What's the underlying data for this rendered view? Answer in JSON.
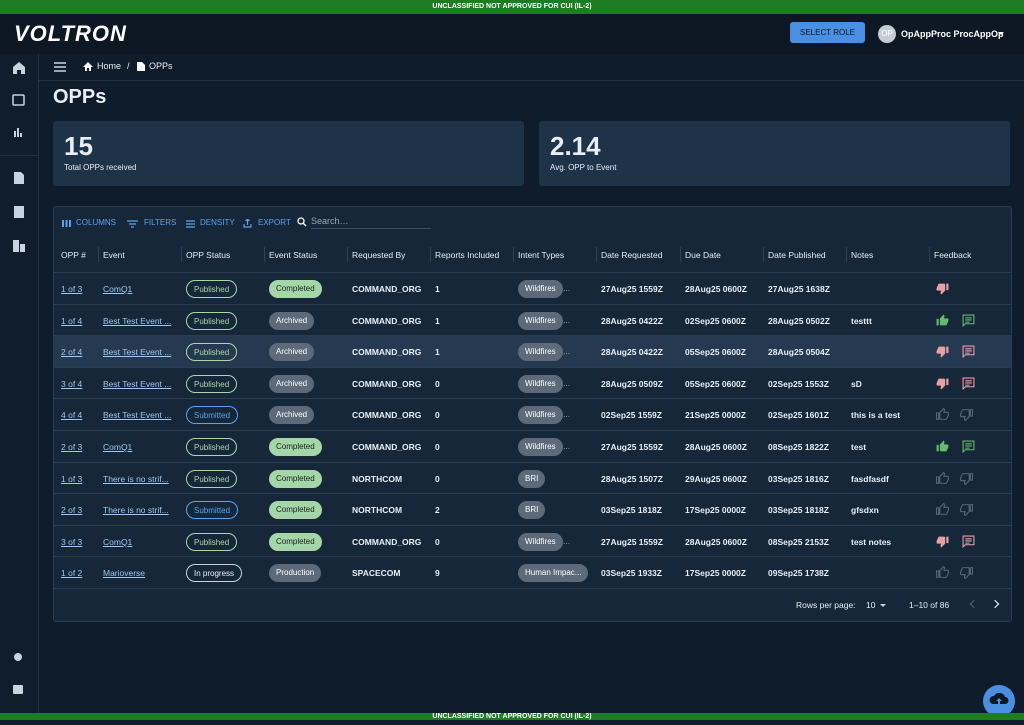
{
  "banner": {
    "top": "UNCLASSIFIED NOT APPROVED FOR CUI (IL-2)",
    "bottom": "UNCLASSIFIED NOT APPROVED FOR CUI (IL-2)"
  },
  "header": {
    "logo": "VOLTRON",
    "select_role": "SELECT ROLE",
    "avatar": "OP",
    "user": "OpAppProc ProcAppOp"
  },
  "breadcrumb": {
    "home": "Home",
    "separator": "/",
    "current": "OPPs"
  },
  "page_title": "OPPs",
  "stats": [
    {
      "value": "15",
      "label": "Total OPPs received"
    },
    {
      "value": "2.14",
      "label": "Avg. OPP to Event"
    }
  ],
  "toolbar": {
    "columns": "COLUMNS",
    "filters": "FILTERS",
    "density": "DENSITY",
    "export": "EXPORT",
    "search": "Search…"
  },
  "table": {
    "columns": [
      "OPP #",
      "Event",
      "OPP Status",
      "Event Status",
      "Requested By",
      "Reports Included",
      "Intent Types",
      "Date Requested",
      "Due Date",
      "Date Published",
      "Notes",
      "Feedback"
    ],
    "rows": [
      {
        "opp": "1 of 3",
        "event": "ComQ1",
        "opp_status": "Published",
        "event_status": "Completed",
        "requested_by": "COMMAND_ORG",
        "reports": 1,
        "intent": "Wildfires",
        "intent_more": "...",
        "date_requested": "27Aug25 1559Z",
        "due_date": "28Aug25 0600Z",
        "date_published": "27Aug25 1638Z",
        "notes": null,
        "feedback": {
          "rating": "down",
          "comment": false
        }
      },
      {
        "opp": "1 of 4",
        "event": "Best Test Event ...",
        "opp_status": "Published",
        "event_status": "Archived",
        "requested_by": "COMMAND_ORG",
        "reports": 1,
        "intent": "Wildfires",
        "intent_more": "...",
        "date_requested": "28Aug25 0422Z",
        "due_date": "02Sep25 0600Z",
        "date_published": "28Aug25 0502Z",
        "notes": "testtt",
        "feedback": {
          "rating": "up",
          "comment": true
        }
      },
      {
        "opp": "2 of 4",
        "event": "Best Test Event ...",
        "opp_status": "Published",
        "event_status": "Archived",
        "requested_by": "COMMAND_ORG",
        "reports": 1,
        "intent": "Wildfires",
        "intent_more": "...",
        "date_requested": "28Aug25 0422Z",
        "due_date": "05Sep25 0600Z",
        "date_published": "28Aug25 0504Z",
        "notes": null,
        "feedback": {
          "rating": "down",
          "comment": true
        }
      },
      {
        "opp": "3 of 4",
        "event": "Best Test Event ...",
        "opp_status": "Published",
        "event_status": "Archived",
        "requested_by": "COMMAND_ORG",
        "reports": 0,
        "intent": "Wildfires",
        "intent_more": "...",
        "date_requested": "28Aug25 0509Z",
        "due_date": "05Sep25 0600Z",
        "date_published": "02Sep25 1553Z",
        "notes": "sD",
        "feedback": {
          "rating": "down",
          "comment": true
        }
      },
      {
        "opp": "4 of 4",
        "event": "Best Test Event ...",
        "opp_status": "Submitted",
        "event_status": "Archived",
        "requested_by": "COMMAND_ORG",
        "reports": 0,
        "intent": "Wildfires",
        "intent_more": "...",
        "date_requested": "02Sep25 1559Z",
        "due_date": "21Sep25 0000Z",
        "date_published": "02Sep25 1601Z",
        "notes": "this is a test",
        "feedback": {
          "rating": "none",
          "comment": false
        }
      },
      {
        "opp": "2 of 3",
        "event": "ComQ1",
        "opp_status": "Published",
        "event_status": "Completed",
        "requested_by": "COMMAND_ORG",
        "reports": 0,
        "intent": "Wildfires",
        "intent_more": "...",
        "date_requested": "27Aug25 1559Z",
        "due_date": "28Aug25 0600Z",
        "date_published": "08Sep25 1822Z",
        "notes": "test",
        "feedback": {
          "rating": "up",
          "comment": true
        }
      },
      {
        "opp": "1 of 3",
        "event": "There is no strif...",
        "opp_status": "Published",
        "event_status": "Completed",
        "requested_by": "NORTHCOM",
        "reports": 0,
        "intent": "BRI",
        "intent_more": null,
        "date_requested": "28Aug25 1507Z",
        "due_date": "29Aug25 0600Z",
        "date_published": "03Sep25 1816Z",
        "notes": "fasdfasdf",
        "feedback": {
          "rating": "none",
          "comment": false
        }
      },
      {
        "opp": "2 of 3",
        "event": "There is no strif...",
        "opp_status": "Submitted",
        "event_status": "Completed",
        "requested_by": "NORTHCOM",
        "reports": 2,
        "intent": "BRI",
        "intent_more": null,
        "date_requested": "03Sep25 1818Z",
        "due_date": "17Sep25 0000Z",
        "date_published": "03Sep25 1818Z",
        "notes": "gfsdxn",
        "feedback": {
          "rating": "none",
          "comment": false
        }
      },
      {
        "opp": "3 of 3",
        "event": "ComQ1",
        "opp_status": "Published",
        "event_status": "Completed",
        "requested_by": "COMMAND_ORG",
        "reports": 0,
        "intent": "Wildfires",
        "intent_more": "...",
        "date_requested": "27Aug25 1559Z",
        "due_date": "28Aug25 0600Z",
        "date_published": "08Sep25 2153Z",
        "notes": "test notes",
        "feedback": {
          "rating": "down",
          "comment": true
        }
      },
      {
        "opp": "1 of 2",
        "event": "Marioverse",
        "opp_status": "In progress",
        "event_status": "Production",
        "requested_by": "SPACECOM",
        "reports": 9,
        "intent": "Human Impac...",
        "intent_more": null,
        "date_requested": "03Sep25 1933Z",
        "due_date": "17Sep25 0000Z",
        "date_published": "09Sep25 1738Z",
        "notes": null,
        "feedback": {
          "rating": "none",
          "comment": false
        }
      }
    ]
  },
  "pagination": {
    "rows_per_page_label": "Rows per page:",
    "rows_per_page": "10",
    "range": "1–10 of 86"
  }
}
